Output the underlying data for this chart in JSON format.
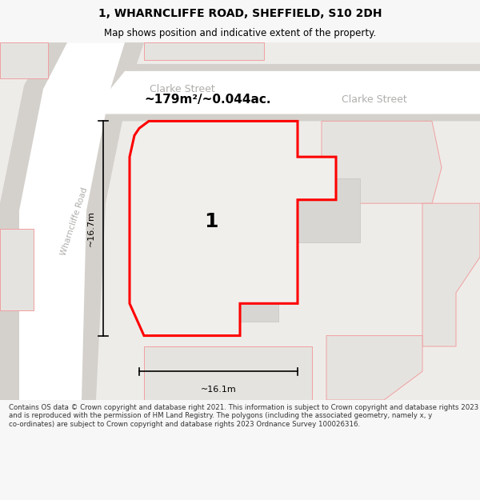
{
  "title": "1, WHARNCLIFFE ROAD, SHEFFIELD, S10 2DH",
  "subtitle": "Map shows position and indicative extent of the property.",
  "footer": "Contains OS data © Crown copyright and database right 2021. This information is subject to Crown copyright and database rights 2023 and is reproduced with the permission of HM Land Registry. The polygons (including the associated geometry, namely x, y co-ordinates) are subject to Crown copyright and database rights 2023 Ordnance Survey 100026316.",
  "area_label": "~179m²/~0.044ac.",
  "property_label": "1",
  "dim_height": "~16.7m",
  "dim_width": "~16.1m",
  "street1": "Clarke Street",
  "street2": "Clarke Street",
  "street3": "Wharncliffe Road",
  "bg_color": "#f7f7f7",
  "map_bg": "#eeece9",
  "road_white": "#ffffff",
  "road_grey": "#d4d1cc",
  "property_fill": "#f0efec",
  "property_stroke": "#ff0000",
  "block_fill": "#e5e3df",
  "block_stroke_pink": "#f0a0a0",
  "block_stroke_grey": "#c8c5c0",
  "grey_bld_fill": "#d8d6d2",
  "dim_color": "#000000",
  "street_label_color": "#b0aeab",
  "title_color": "#000000",
  "footer_color": "#333333",
  "title_fontsize": 10,
  "subtitle_fontsize": 8.5,
  "footer_fontsize": 6.2,
  "area_fontsize": 11,
  "prop_num_fontsize": 18,
  "street_fontsize": 9,
  "dim_fontsize": 8
}
